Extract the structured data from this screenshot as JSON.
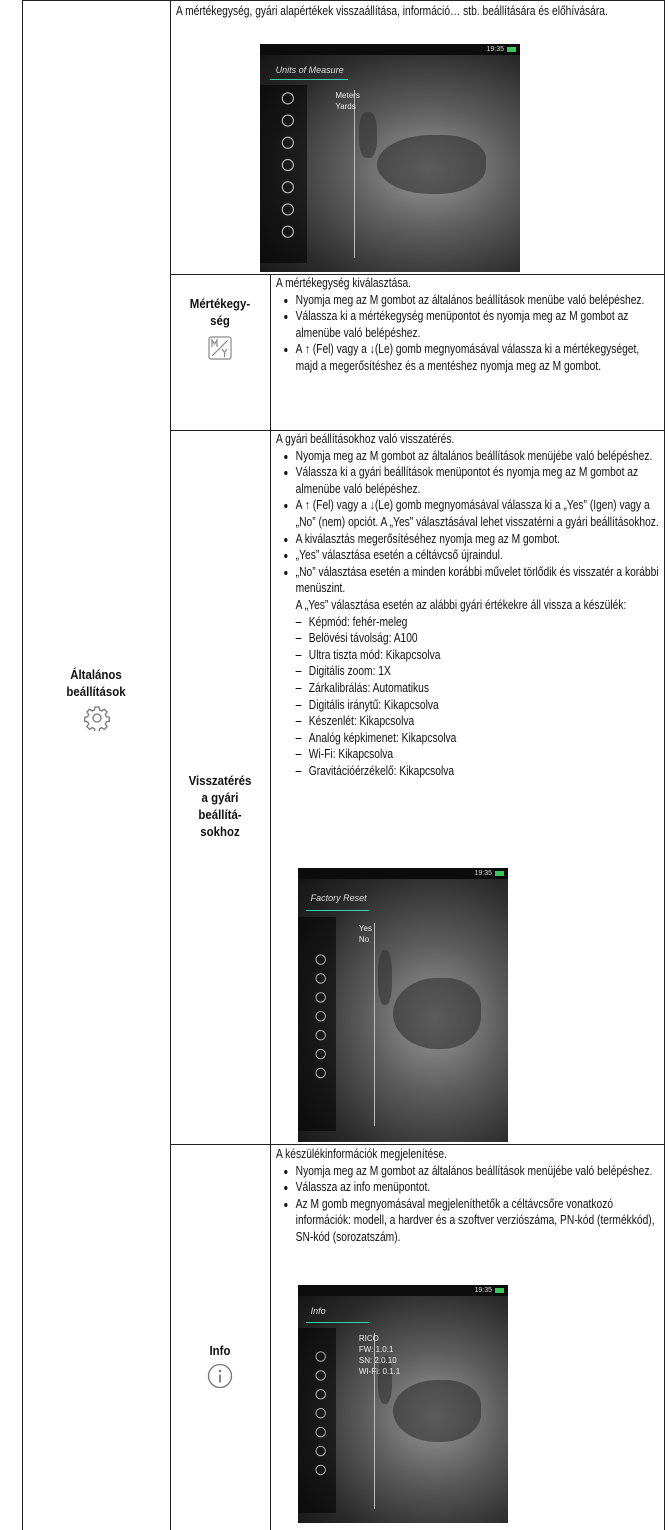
{
  "intro": "A mértékegység, gyári alapértékek visszaállítása, információ… stb. beállítására és előhívására.",
  "category": {
    "label": "Általános beállítások"
  },
  "screens": {
    "units": {
      "title": "Units of Measure",
      "options": [
        "Meters",
        "Yards"
      ],
      "time": "19:35"
    },
    "reset": {
      "title": "Factory Reset",
      "options": [
        "Yes",
        "No"
      ],
      "time": "19:35"
    },
    "info": {
      "title": "Info",
      "options": [
        "RICO",
        "FW: 1.0.1",
        "SN: 2.0.10",
        "WI-Fi: 0.1.1"
      ],
      "time": "19:35"
    }
  },
  "rows": [
    {
      "label": [
        "Mértékegy-",
        "ség"
      ],
      "lead": "A mértékegység kiválasztása.",
      "bullets": [
        "Nyomja meg az M gombot az általános beállítások menübe való belépéshez.",
        "Válassza ki a mértékegység menüpontot és nyomja meg az M gombot az almenübe való belépéshez.",
        "A ↑ (Fel) vagy a ↓(Le) gomb megnyomásával válassza ki a mértékegységet, majd a megerősítéshez és a mentéshez nyomja meg az M gombot."
      ]
    },
    {
      "label": [
        "Visszatérés",
        "a gyári",
        "beállítá-",
        "sokhoz"
      ],
      "lead": "A gyári beállításokhoz való visszatérés.",
      "bullets": [
        "Nyomja meg az M gombot az általános beállítások menüjébe való belépéshez.",
        "Válassza ki a gyári beállítások menüpontot és nyomja meg az M gombot az almenübe való belépéshez.",
        "A ↑ (Fel) vagy a ↓(Le) gomb megnyomásával válassza ki a „Yes” (Igen) vagy a „No” (nem) opciót. A „Yes” választásával lehet visszatérni a gyári beállításokhoz.",
        "A kiválasztás megerősítéséhez nyomja meg az M gombot.",
        "„Yes” választása esetén a céltávcső újraindul.",
        "„No” választása esetén a minden korábbi művelet törlődik és visszatér a korábbi menüszint."
      ],
      "note": "A „Yes” választása esetén az alábbi gyári értékekre áll vissza a készülék:",
      "defaults": [
        "Képmód: fehér-meleg",
        "Belövési távolság: A100",
        "Ultra tiszta mód: Kikapcsolva",
        "Digitális zoom: 1X",
        "Zárkalibrálás: Automatikus",
        "Digitális iránytű: Kikapcsolva",
        "Készenlét: Kikapcsolva",
        "Analóg képkimenet: Kikapcsolva",
        "Wi-Fi: Kikapcsolva",
        "Gravitációérzékelő: Kikapcsolva"
      ]
    },
    {
      "label": [
        "Info"
      ],
      "lead": "A készülékinformációk megjelenítése.",
      "bullets": [
        "Nyomja meg az M gombot az általános beállítások menüjébe való belépéshez.",
        "Válassza az info menüpontot.",
        "Az M gomb megnyomásával megjeleníthetők a céltávcsőre vonatkozó információk: modell, a hardver és a szoftver verziószáma, PN-kód (termékkód), SN-kód (sorozatszám)."
      ]
    }
  ]
}
